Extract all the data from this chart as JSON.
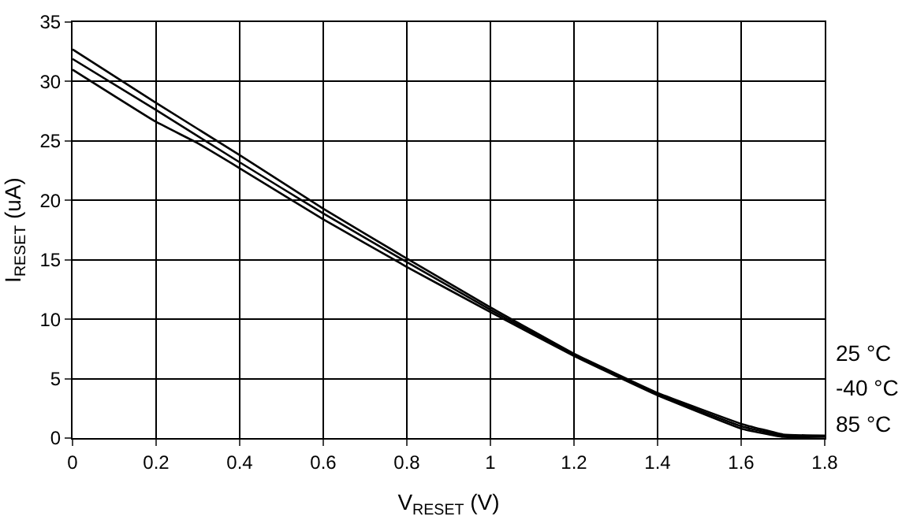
{
  "chart_data": {
    "type": "line",
    "xlabel": "V$_{RESET}$ (V)",
    "ylabel": "I$_{RESET}$ (uA)",
    "xlim": [
      0,
      1.8
    ],
    "xticks": [
      0,
      0.2,
      0.4,
      0.6,
      0.8,
      1,
      1.2,
      1.4,
      1.6,
      1.8
    ],
    "ylim": [
      0,
      35
    ],
    "yticks": [
      0,
      5,
      10,
      15,
      20,
      25,
      30,
      35
    ],
    "grid": true,
    "legend": false,
    "marker": "none",
    "line_style": "solid",
    "series": [
      {
        "name": "25 °C",
        "color": "#000000",
        "x": [
          0,
          0.2,
          0.4,
          0.6,
          0.8,
          1.0,
          1.2,
          1.4,
          1.6,
          1.7,
          1.8
        ],
        "values": [
          32.7,
          28.2,
          23.8,
          19.3,
          15.1,
          11.0,
          7.1,
          3.8,
          1.2,
          0.3,
          0.2
        ]
      },
      {
        "name": "-40 °C",
        "color": "#000000",
        "x": [
          0,
          0.2,
          0.4,
          0.6,
          0.8,
          1.0,
          1.2,
          1.4,
          1.6,
          1.7,
          1.8
        ],
        "values": [
          31.9,
          27.6,
          23.2,
          18.9,
          14.8,
          10.8,
          7.0,
          3.7,
          1.0,
          0.2,
          0.2
        ]
      },
      {
        "name": "85 °C",
        "color": "#000000",
        "x": [
          0,
          0.2,
          0.3,
          0.4,
          0.6,
          0.8,
          1.0,
          1.2,
          1.4,
          1.6,
          1.7,
          1.8
        ],
        "values": [
          31.0,
          26.6,
          24.8,
          22.7,
          18.4,
          14.4,
          10.6,
          6.9,
          3.6,
          0.8,
          0.1,
          0.1
        ]
      }
    ]
  }
}
